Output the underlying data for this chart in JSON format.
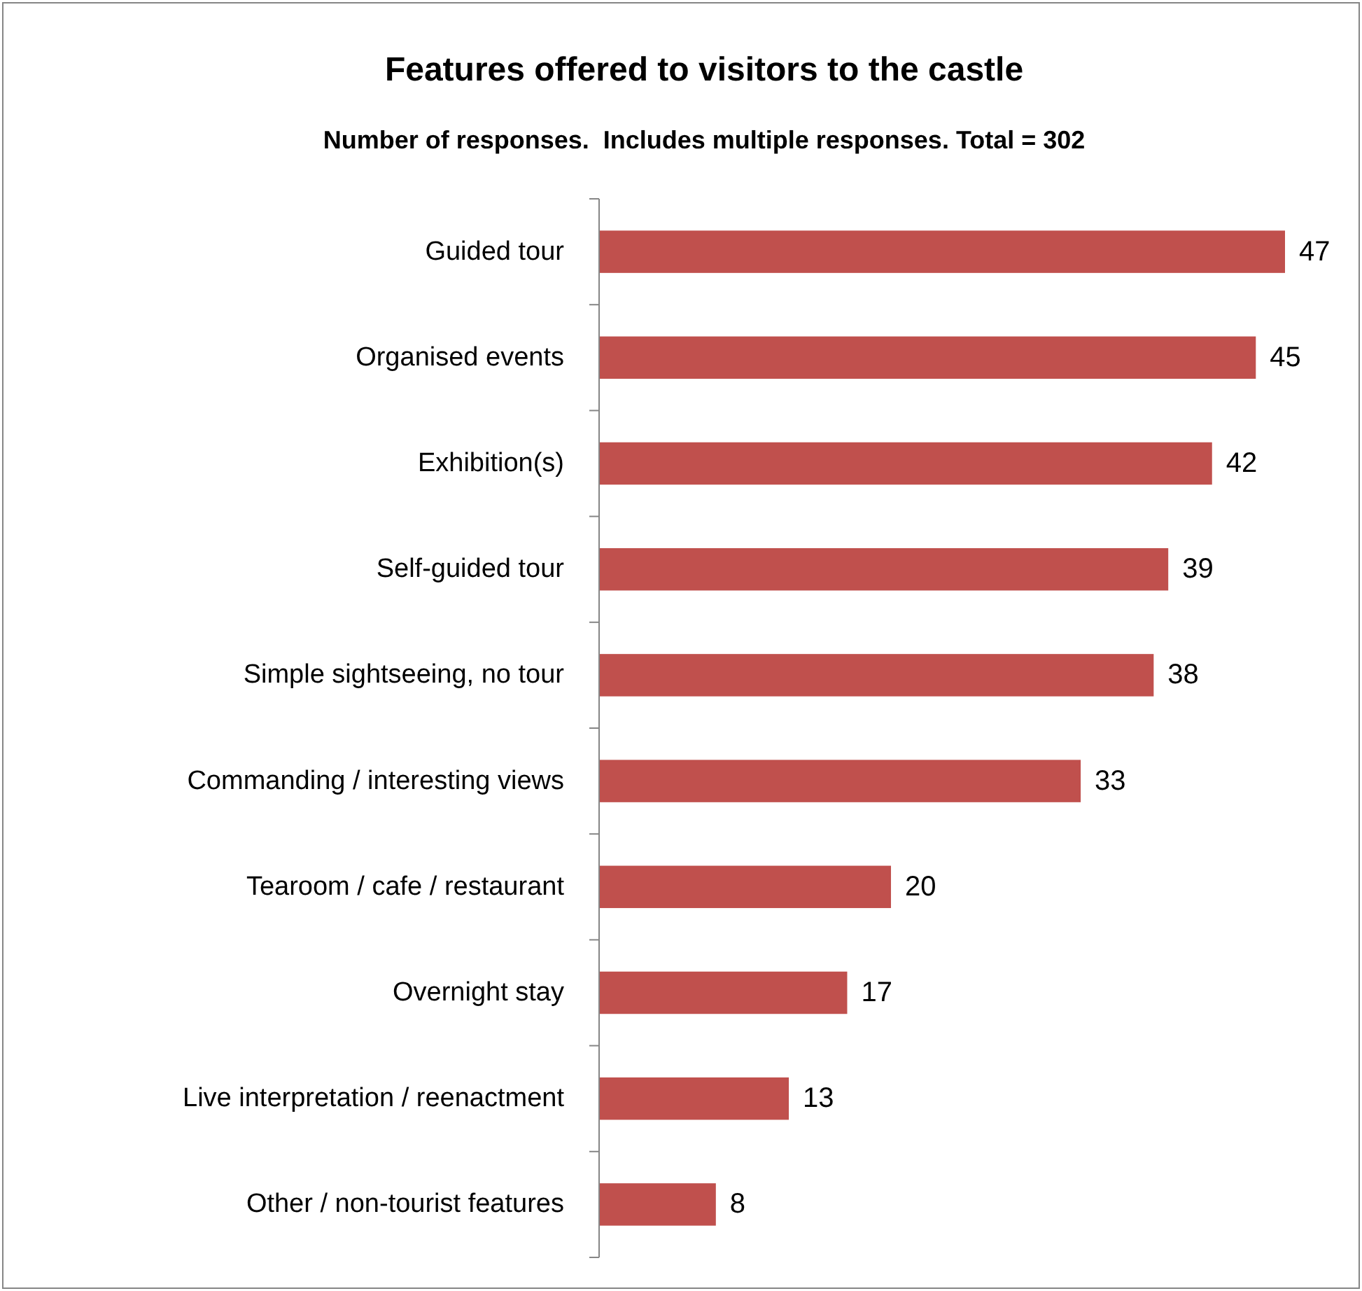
{
  "chart_data": {
    "type": "bar",
    "orientation": "horizontal",
    "title": "Features offered to visitors to the castle",
    "subtitle": "Number of responses.  Includes multiple responses. Total = 302",
    "categories": [
      "Guided tour",
      "Organised events",
      "Exhibition(s)",
      "Self-guided tour",
      "Simple sightseeing, no tour",
      "Commanding / interesting views",
      "Tearoom / cafe / restaurant",
      "Overnight stay",
      "Live interpretation / reenactment",
      "Other / non-tourist features"
    ],
    "values": [
      47,
      45,
      42,
      39,
      38,
      33,
      20,
      17,
      13,
      8
    ],
    "color": "#c0504d",
    "data_labels": true
  }
}
